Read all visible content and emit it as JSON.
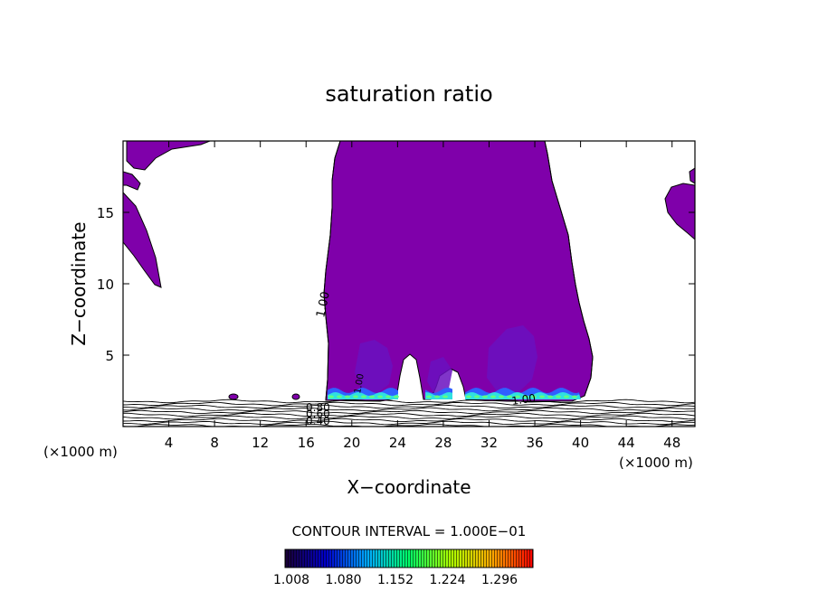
{
  "chart_data": {
    "type": "contour",
    "title": "saturation ratio",
    "xlabel": "X−coordinate",
    "ylabel": "Z−coordinate",
    "xlim": [
      0,
      50
    ],
    "ylim": [
      0,
      20
    ],
    "x_ticks": [
      4,
      8,
      12,
      16,
      20,
      24,
      28,
      32,
      36,
      40,
      44,
      48
    ],
    "y_ticks": [
      5,
      10,
      15
    ],
    "x_unit_label_left": "(×1000 m)",
    "x_unit_label_right": "(×1000 m)",
    "contour_interval_label": "CONTOUR INTERVAL = 1.000E−01",
    "contour_labels": [
      "1.00",
      "1.00",
      "1.00",
      "0.80",
      "0.60",
      "0.40"
    ],
    "colorbar": {
      "ticks": [
        "1.008",
        "1.080",
        "1.152",
        "1.224",
        "1.296"
      ],
      "colors": [
        "#1a0033",
        "#0000cc",
        "#00aaff",
        "#00ff66",
        "#aaff00",
        "#ffaa00",
        "#ff0000"
      ]
    },
    "fill_color": "#7f00aa",
    "core_color": "#6a10c0",
    "grid": false
  }
}
